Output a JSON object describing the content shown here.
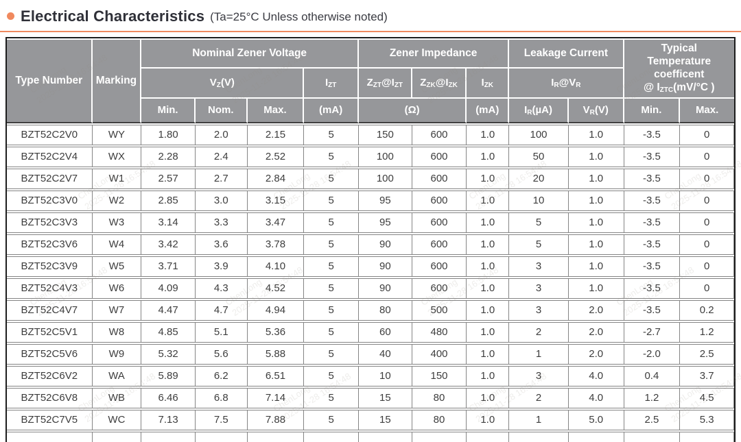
{
  "header": {
    "title": "Electrical Characteristics",
    "subtitle": "(Ta=25°C Unless otherwise noted)"
  },
  "colors": {
    "accent_orange": "#F0895E",
    "header_bg": "#96979A",
    "header_text": "#FFFFFF",
    "body_text": "#3D3D3D",
    "grid_line": "#848484",
    "outer_border": "#1C1C1C"
  },
  "table": {
    "groups": {
      "type_number": "Type Number",
      "marking": "Marking",
      "nominal_zener_voltage": "Nominal Zener Voltage",
      "zener_impedance": "Zener Impedance",
      "leakage_current": "Leakage Current",
      "typical_temp_coeff": [
        {
          "t": "Typical"
        },
        {
          "br": 1
        },
        {
          "t": "Temperature"
        },
        {
          "br": 1
        },
        {
          "t": "coefficent"
        },
        {
          "br": 1
        },
        {
          "t": "@ I"
        },
        {
          "t": "ZTC",
          "sub": 1
        },
        {
          "t": "(mV/°C )"
        }
      ]
    },
    "subheaders": {
      "vz": [
        {
          "t": "V"
        },
        {
          "t": "Z",
          "sub": 1
        },
        {
          "t": "(V)"
        }
      ],
      "izt": [
        {
          "t": "I"
        },
        {
          "t": "ZT",
          "sub": 1
        }
      ],
      "zzt_izt": [
        {
          "t": "Z"
        },
        {
          "t": "ZT",
          "sub": 1
        },
        {
          "t": "@I"
        },
        {
          "t": "ZT",
          "sub": 1
        }
      ],
      "zzk_izk": [
        {
          "t": "Z"
        },
        {
          "t": "ZK",
          "sub": 1
        },
        {
          "t": "@I"
        },
        {
          "t": "ZK",
          "sub": 1
        }
      ],
      "izk": [
        {
          "t": "I"
        },
        {
          "t": "ZK",
          "sub": 1
        }
      ],
      "ir_vr": [
        {
          "t": "I"
        },
        {
          "t": "R",
          "sub": 1
        },
        {
          "t": "@V"
        },
        {
          "t": "R",
          "sub": 1
        }
      ]
    },
    "units": {
      "min1": "Min.",
      "nom": "Nom.",
      "max1": "Max.",
      "ma_izt": "(mA)",
      "ohm": "(Ω)",
      "ma_izk": "(mA)",
      "ir_ua": [
        {
          "t": "I"
        },
        {
          "t": "R",
          "sub": 1
        },
        {
          "t": "(µA)"
        }
      ],
      "vr_v": [
        {
          "t": "V"
        },
        {
          "t": "R",
          "sub": 1
        },
        {
          "t": "(V)"
        }
      ],
      "min2": "Min.",
      "max2": "Max."
    },
    "rows": [
      [
        "BZT52C2V0",
        "WY",
        "1.80",
        "2.0",
        "2.15",
        "5",
        "150",
        "600",
        "1.0",
        "100",
        "1.0",
        "-3.5",
        "0"
      ],
      [
        "BZT52C2V4",
        "WX",
        "2.28",
        "2.4",
        "2.52",
        "5",
        "100",
        "600",
        "1.0",
        "50",
        "1.0",
        "-3.5",
        "0"
      ],
      [
        "BZT52C2V7",
        "W1",
        "2.57",
        "2.7",
        "2.84",
        "5",
        "100",
        "600",
        "1.0",
        "20",
        "1.0",
        "-3.5",
        "0"
      ],
      [
        "BZT52C3V0",
        "W2",
        "2.85",
        "3.0",
        "3.15",
        "5",
        "95",
        "600",
        "1.0",
        "10",
        "1.0",
        "-3.5",
        "0"
      ],
      [
        "BZT52C3V3",
        "W3",
        "3.14",
        "3.3",
        "3.47",
        "5",
        "95",
        "600",
        "1.0",
        "5",
        "1.0",
        "-3.5",
        "0"
      ],
      [
        "BZT52C3V6",
        "W4",
        "3.42",
        "3.6",
        "3.78",
        "5",
        "90",
        "600",
        "1.0",
        "5",
        "1.0",
        "-3.5",
        "0"
      ],
      [
        "BZT52C3V9",
        "W5",
        "3.71",
        "3.9",
        "4.10",
        "5",
        "90",
        "600",
        "1.0",
        "3",
        "1.0",
        "-3.5",
        "0"
      ],
      [
        "BZT52C4V3",
        "W6",
        "4.09",
        "4.3",
        "4.52",
        "5",
        "90",
        "600",
        "1.0",
        "3",
        "1.0",
        "-3.5",
        "0"
      ],
      [
        "BZT52C4V7",
        "W7",
        "4.47",
        "4.7",
        "4.94",
        "5",
        "80",
        "500",
        "1.0",
        "3",
        "2.0",
        "-3.5",
        "0.2"
      ],
      [
        "BZT52C5V1",
        "W8",
        "4.85",
        "5.1",
        "5.36",
        "5",
        "60",
        "480",
        "1.0",
        "2",
        "2.0",
        "-2.7",
        "1.2"
      ],
      [
        "BZT52C5V6",
        "W9",
        "5.32",
        "5.6",
        "5.88",
        "5",
        "40",
        "400",
        "1.0",
        "1",
        "2.0",
        "-2.0",
        "2.5"
      ],
      [
        "BZT52C6V2",
        "WA",
        "5.89",
        "6.2",
        "6.51",
        "5",
        "10",
        "150",
        "1.0",
        "3",
        "4.0",
        "0.4",
        "3.7"
      ],
      [
        "BZT52C6V8",
        "WB",
        "6.46",
        "6.8",
        "7.14",
        "5",
        "15",
        "80",
        "1.0",
        "2",
        "4.0",
        "1.2",
        "4.5"
      ],
      [
        "BZT52C7V5",
        "WC",
        "7.13",
        "7.5",
        "7.88",
        "5",
        "15",
        "80",
        "1.0",
        "1",
        "5.0",
        "2.5",
        "5.3"
      ]
    ],
    "column_widths_pct": [
      11.75,
      6.77,
      7.42,
      7.14,
      7.8,
      7.52,
      7.33,
      7.52,
      5.83,
      8.18,
      7.61,
      7.71,
      7.42
    ]
  },
  "watermark": {
    "line1": "ChenLong",
    "line2": "2025-11-28 16:54:48"
  }
}
